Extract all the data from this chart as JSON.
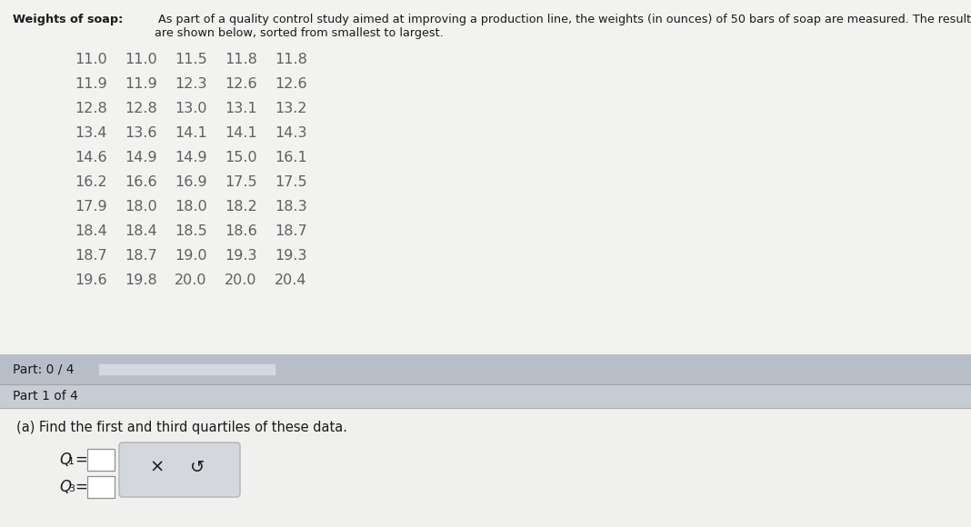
{
  "title_bold": "Weights of soap:",
  "title_normal": " As part of a quality control study aimed at improving a production line, the weights (in ounces) of 50 bars of soap are measured. The results\nare shown below, sorted from smallest to largest.",
  "data_rows": [
    [
      "11.0",
      "11.0",
      "11.5",
      "11.8",
      "11.8"
    ],
    [
      "11.9",
      "11.9",
      "12.3",
      "12.6",
      "12.6"
    ],
    [
      "12.8",
      "12.8",
      "13.0",
      "13.1",
      "13.2"
    ],
    [
      "13.4",
      "13.6",
      "14.1",
      "14.1",
      "14.3"
    ],
    [
      "14.6",
      "14.9",
      "14.9",
      "15.0",
      "16.1"
    ],
    [
      "16.2",
      "16.6",
      "16.9",
      "17.5",
      "17.5"
    ],
    [
      "17.9",
      "18.0",
      "18.0",
      "18.2",
      "18.3"
    ],
    [
      "18.4",
      "18.4",
      "18.5",
      "18.6",
      "18.7"
    ],
    [
      "18.7",
      "18.7",
      "19.0",
      "19.3",
      "19.3"
    ],
    [
      "19.6",
      "19.8",
      "20.0",
      "20.0",
      "20.4"
    ]
  ],
  "part_label": "Part: 0 / 4",
  "part1_label": "Part 1 of 4",
  "question": "(a) Find the first and third quartiles of these data.",
  "q1_label": "Q",
  "q1_sub": "1",
  "q3_label": "Q",
  "q3_sub": "3",
  "equals": " =",
  "bg_top": "#e8eaec",
  "bg_main": "#f2f2f0",
  "part_bar_bg": "#b8bec8",
  "part1_bar_bg": "#c8ccd4",
  "content_bg": "#f0f0ee",
  "progress_bar_color": "#d0d4dc",
  "progress_bar_fill": "#d4d8e0",
  "box_bg": "#ffffff",
  "button_bg": "#d4d8dc",
  "button_border": "#b8bcbf",
  "text_dark": "#1a1a1a",
  "text_data": "#606060",
  "text_medium": "#333333",
  "font_size_title": 9.2,
  "font_size_data": 11.5,
  "font_size_part": 10,
  "font_size_question": 10.5,
  "font_size_q": 12
}
